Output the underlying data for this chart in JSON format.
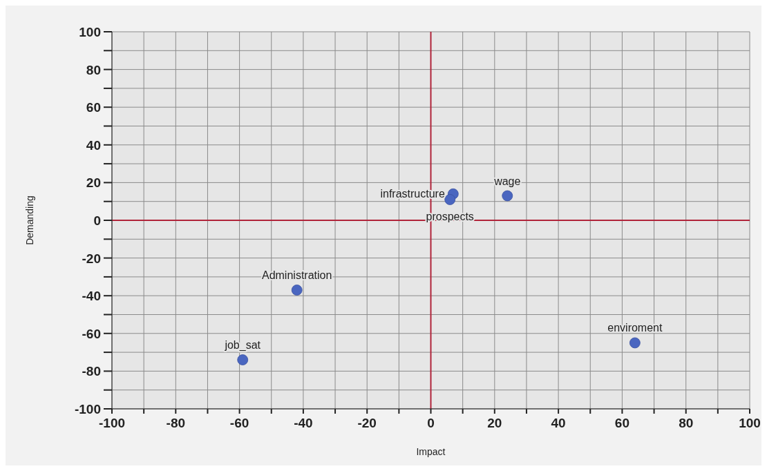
{
  "chart_data": {
    "type": "scatter",
    "xlabel": "Impact",
    "ylabel": "Demanding",
    "x": [
      7,
      6,
      24,
      -42,
      -59,
      64
    ],
    "series": [
      {
        "color": "#4a66c0",
        "values": [
          14,
          11,
          13,
          -37,
          -74,
          -65
        ]
      }
    ],
    "xlim": [
      -100,
      100
    ],
    "ylim": [
      -100,
      100
    ],
    "xticks": [
      -100,
      {
        "value": -90,
        "label": null
      },
      -80,
      {
        "value": -70,
        "label": null
      },
      -60,
      {
        "value": -50,
        "label": null
      },
      -40,
      {
        "value": -30,
        "label": null
      },
      -20,
      {
        "value": -10,
        "label": null
      },
      0,
      {
        "value": 10,
        "label": null
      },
      20,
      {
        "value": 30,
        "label": null
      },
      40,
      {
        "value": 50,
        "label": null
      },
      60,
      {
        "value": 70,
        "label": null
      },
      80,
      {
        "value": 90,
        "label": null
      },
      100
    ],
    "yticks": [
      -100,
      {
        "value": -90,
        "label": null
      },
      -80,
      {
        "value": -70,
        "label": null
      },
      -60,
      {
        "value": -50,
        "label": null
      },
      -40,
      {
        "value": -30,
        "label": null
      },
      -20,
      {
        "value": -10,
        "label": null
      },
      0,
      {
        "value": 10,
        "label": null
      },
      20,
      {
        "value": 30,
        "label": null
      },
      40,
      {
        "value": 50,
        "label": null
      },
      60,
      {
        "value": 70,
        "label": null
      },
      80,
      {
        "value": 90,
        "label": null
      },
      100
    ],
    "grid": true,
    "marker": "circle",
    "annotations": [
      {
        "text": "infrastructure",
        "x": 7,
        "y": 14
      },
      {
        "text": "prospects",
        "x": 6,
        "y": 11
      },
      {
        "text": "wage",
        "x": 24,
        "y": 13
      },
      {
        "text": "Administration",
        "x": -42,
        "y": -37
      },
      {
        "text": "job_sat",
        "x": -59,
        "y": -74
      },
      {
        "text": "enviroment",
        "x": 64,
        "y": -65
      }
    ]
  }
}
